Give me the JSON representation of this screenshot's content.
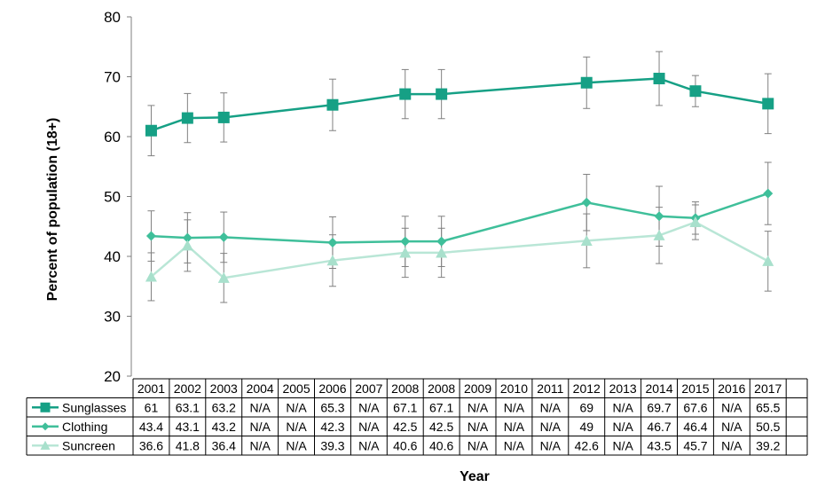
{
  "chart_data": {
    "type": "line",
    "title": "",
    "xlabel": "Year",
    "ylabel": "Percent of population (18+)",
    "ylim": [
      20,
      80
    ],
    "yticks": [
      20,
      30,
      40,
      50,
      60,
      70,
      80
    ],
    "grid": false,
    "legend": "in data table rows",
    "categories": [
      "2001",
      "2002",
      "2003",
      "2004",
      "2005",
      "2006",
      "2007",
      "2008",
      "2008",
      "2009",
      "2010",
      "2011",
      "2012",
      "2013",
      "2014",
      "2015",
      "2016",
      "2017"
    ],
    "series": [
      {
        "name": "Sunglasses",
        "marker": "square",
        "color": "#16a085",
        "line_color": "#16a085",
        "values": [
          61,
          63.1,
          63.2,
          null,
          null,
          65.3,
          null,
          67.1,
          67.1,
          null,
          null,
          null,
          69,
          null,
          69.7,
          67.6,
          null,
          65.5
        ],
        "labels": [
          "61",
          "63.1",
          "63.2",
          "N/A",
          "N/A",
          "65.3",
          "N/A",
          "67.1",
          "67.1",
          "N/A",
          "N/A",
          "N/A",
          "69",
          "N/A",
          "69.7",
          "67.6",
          "N/A",
          "65.5"
        ],
        "error_low": [
          56.8,
          59,
          59.1,
          null,
          null,
          61,
          null,
          63,
          63,
          null,
          null,
          null,
          64.7,
          null,
          65.2,
          65,
          null,
          60.5
        ],
        "error_high": [
          65.2,
          67.2,
          67.3,
          null,
          null,
          69.6,
          null,
          71.2,
          71.2,
          null,
          null,
          null,
          73.3,
          null,
          74.2,
          70.2,
          null,
          70.5
        ]
      },
      {
        "name": "Clothing",
        "marker": "diamond",
        "color": "#3fbf9a",
        "line_color": "#3fbf9a",
        "values": [
          43.4,
          43.1,
          43.2,
          null,
          null,
          42.3,
          null,
          42.5,
          42.5,
          null,
          null,
          null,
          49,
          null,
          46.7,
          46.4,
          null,
          50.5
        ],
        "labels": [
          "43.4",
          "43.1",
          "43.2",
          "N/A",
          "N/A",
          "42.3",
          "N/A",
          "42.5",
          "42.5",
          "N/A",
          "N/A",
          "N/A",
          "49",
          "N/A",
          "46.7",
          "46.4",
          "N/A",
          "50.5"
        ],
        "error_low": [
          39.2,
          38.9,
          39,
          null,
          null,
          38,
          null,
          38.3,
          38.3,
          null,
          null,
          null,
          44.3,
          null,
          41.7,
          43.7,
          null,
          45.3
        ],
        "error_high": [
          47.6,
          47.3,
          47.4,
          null,
          null,
          46.6,
          null,
          46.7,
          46.7,
          null,
          null,
          null,
          53.7,
          null,
          51.7,
          49.1,
          null,
          55.7
        ]
      },
      {
        "name": "Suncreen",
        "marker": "triangle",
        "color": "#a8e0cc",
        "line_color": "#b9e6d6",
        "values": [
          36.6,
          41.8,
          36.4,
          null,
          null,
          39.3,
          null,
          40.6,
          40.6,
          null,
          null,
          null,
          42.6,
          null,
          43.5,
          45.7,
          null,
          39.2
        ],
        "labels": [
          "36.6",
          "41.8",
          "36.4",
          "N/A",
          "N/A",
          "39.3",
          "N/A",
          "40.6",
          "40.6",
          "N/A",
          "N/A",
          "N/A",
          "42.6",
          "N/A",
          "43.5",
          "45.7",
          "N/A",
          "39.2"
        ],
        "error_low": [
          32.6,
          37.5,
          32.3,
          null,
          null,
          35,
          null,
          36.5,
          36.5,
          null,
          null,
          null,
          38.1,
          null,
          38.8,
          42.8,
          null,
          34.2
        ],
        "error_high": [
          40.6,
          46.1,
          40.5,
          null,
          null,
          43.6,
          null,
          44.7,
          44.7,
          null,
          null,
          null,
          47.1,
          null,
          48.2,
          48.6,
          null,
          44.2
        ]
      }
    ]
  }
}
